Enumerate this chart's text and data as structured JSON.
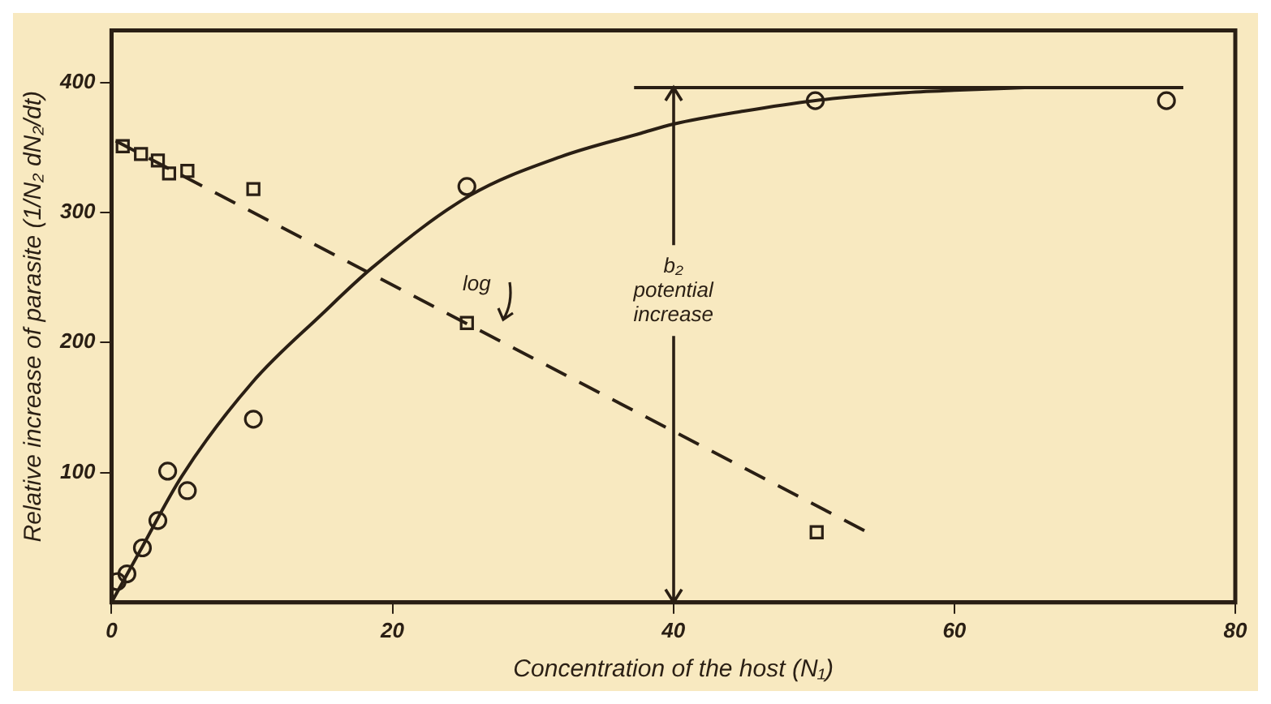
{
  "chart_data": {
    "type": "scatter",
    "xlabel": "Concentration of the host (N₁)",
    "ylabel": "Relative increase of parasite (1/N₂ dN₂/dt)",
    "xlim": [
      0,
      80
    ],
    "ylim": [
      0,
      440
    ],
    "xticks": [
      0,
      20,
      40,
      60,
      80
    ],
    "yticks": [
      100,
      200,
      300,
      400
    ],
    "grid": false,
    "legend": false,
    "series": [
      {
        "type": "scatter",
        "marker": "circle",
        "color": "#2a1f14",
        "x": [
          0.4,
          1.1,
          2.2,
          3.3,
          4.0,
          5.4,
          10.1,
          25.3,
          50.1,
          75.1
        ],
        "values": [
          16,
          22,
          42,
          63,
          101,
          86,
          141,
          320,
          386,
          386
        ]
      },
      {
        "type": "scatter",
        "marker": "square",
        "color": "#2a1f14",
        "x": [
          0.8,
          2.1,
          3.3,
          4.1,
          5.4,
          10.1,
          25.3,
          50.2
        ],
        "values": [
          351,
          345,
          340,
          330,
          332,
          318,
          215,
          54
        ]
      },
      {
        "type": "line",
        "line_style": "solid",
        "color": "#2a1f14",
        "x": [
          0,
          2,
          5,
          10,
          15,
          18.5,
          25.5,
          32,
          37.7,
          40,
          45,
          50,
          56.3,
          60,
          65
        ],
        "values": [
          0,
          39,
          97,
          169,
          222,
          257,
          313,
          343,
          361,
          368,
          378,
          386,
          392,
          394,
          396
        ]
      },
      {
        "type": "line",
        "line_style": "dashed",
        "color": "#2a1f14",
        "x": [
          0.3,
          54
        ],
        "values": [
          355,
          53
        ]
      },
      {
        "type": "line",
        "line_style": "solid",
        "color": "#2a1f14",
        "x": [
          37.2,
          76.3
        ],
        "values": [
          396,
          396
        ]
      }
    ],
    "annotations": [
      "log",
      {
        "text": "b₂\npotential\nincrease",
        "x": 40,
        "y": 396
      }
    ]
  }
}
